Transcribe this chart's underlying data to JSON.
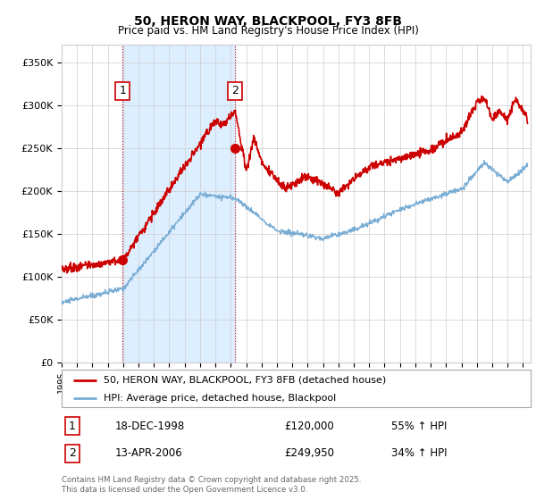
{
  "title": "50, HERON WAY, BLACKPOOL, FY3 8FB",
  "subtitle": "Price paid vs. HM Land Registry's House Price Index (HPI)",
  "legend_line1": "50, HERON WAY, BLACKPOOL, FY3 8FB (detached house)",
  "legend_line2": "HPI: Average price, detached house, Blackpool",
  "footer": "Contains HM Land Registry data © Crown copyright and database right 2025.\nThis data is licensed under the Open Government Licence v3.0.",
  "annotation1_label": "1",
  "annotation1_date": "18-DEC-1998",
  "annotation1_price": "£120,000",
  "annotation1_hpi": "55% ↑ HPI",
  "annotation2_label": "2",
  "annotation2_date": "13-APR-2006",
  "annotation2_price": "£249,950",
  "annotation2_hpi": "34% ↑ HPI",
  "red_color": "#cc0000",
  "blue_color": "#7aadd4",
  "bg_color": "#ffffff",
  "grid_color": "#cccccc",
  "highlight_color": "#ddeeff",
  "ylim_min": 0,
  "ylim_max": 370000,
  "yticks": [
    0,
    50000,
    100000,
    150000,
    200000,
    250000,
    300000,
    350000
  ],
  "ytick_labels": [
    "£0",
    "£50K",
    "£100K",
    "£150K",
    "£200K",
    "£250K",
    "£300K",
    "£350K"
  ],
  "purchase1_year": 1998.96,
  "purchase1_price": 120000,
  "purchase2_year": 2006.28,
  "purchase2_price": 249950,
  "xmin": 1995,
  "xmax": 2025.5
}
